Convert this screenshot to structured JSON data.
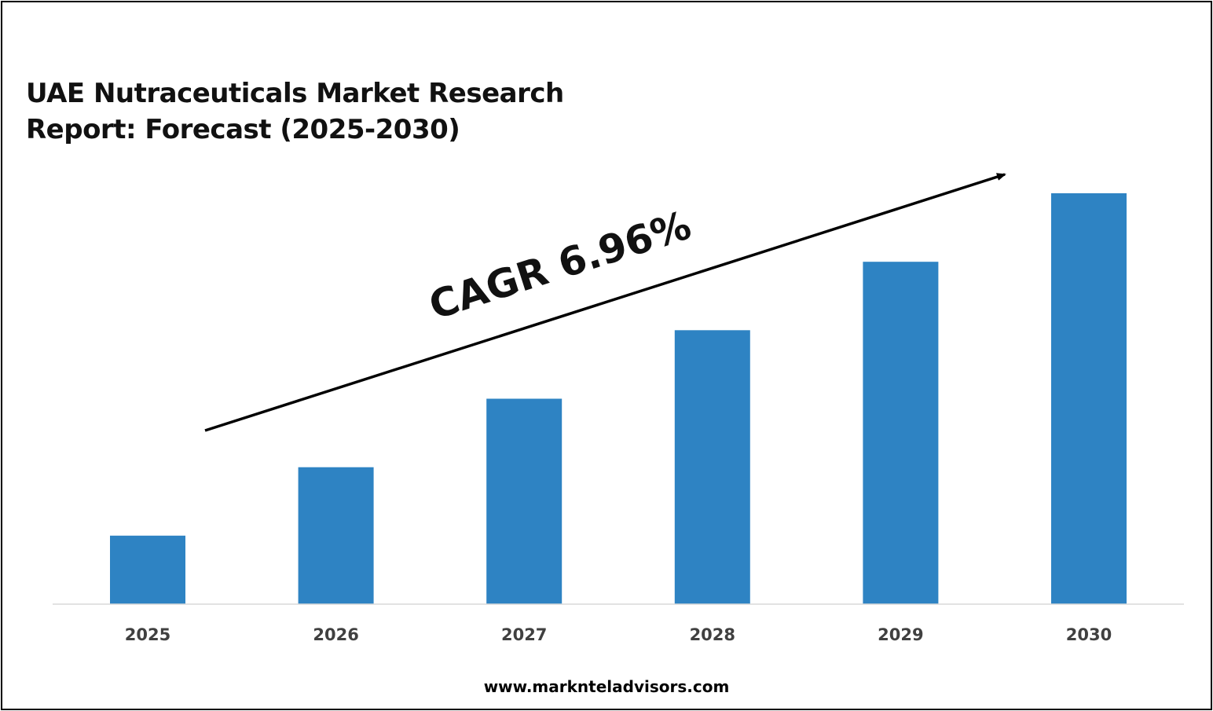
{
  "colors": {
    "bar": "#2e83c3",
    "axis": "#d9d9d9",
    "text": "#404040",
    "arrow": "#000000"
  },
  "chart_data": {
    "type": "bar",
    "title": "UAE Nutraceuticals Market Research Report: Forecast (2025-2030)",
    "title_lines": [
      "UAE Nutraceuticals Market Research",
      "Report: Forecast (2025-2030)"
    ],
    "categories": [
      "2025",
      "2026",
      "2027",
      "2028",
      "2029",
      "2030"
    ],
    "values": [
      1,
      2,
      3,
      4,
      5,
      6
    ],
    "ylim": [
      0,
      6
    ],
    "xlabel": "",
    "ylabel": "",
    "grid": false,
    "annotation": "CAGR 6.96%"
  },
  "footer": {
    "website": "www.marknteladvisors.com"
  }
}
